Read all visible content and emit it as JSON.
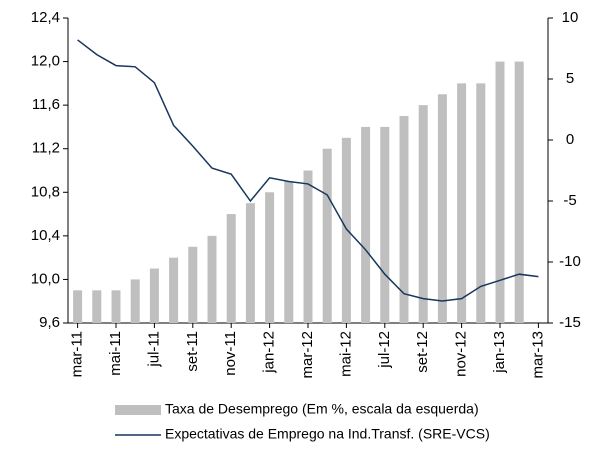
{
  "chart_data": {
    "type": "bar_line",
    "categories": [
      "mar-11",
      null,
      "mai-11",
      null,
      "jul-11",
      null,
      "set-11",
      null,
      "nov-11",
      null,
      "jan-12",
      null,
      "mar-12",
      null,
      "mai-12",
      null,
      "jul-12",
      null,
      "set-12",
      null,
      "nov-12",
      null,
      "jan-13",
      null,
      "mar-13"
    ],
    "series": [
      {
        "name": "Taxa de Desemprego (Em %, escala da esquerda)",
        "type": "bar",
        "color": "#bfbfbf",
        "axis": "y",
        "values": [
          9.9,
          9.9,
          9.9,
          10.0,
          10.1,
          10.2,
          10.3,
          10.4,
          10.6,
          10.7,
          10.8,
          10.9,
          11.0,
          11.2,
          11.3,
          11.4,
          11.4,
          11.5,
          11.6,
          11.7,
          11.8,
          11.8,
          12.0,
          12.0,
          null
        ]
      },
      {
        "name": "Expectativas de Emprego na Ind.Transf. (SRE-VCS)",
        "type": "line",
        "color": "#17375e",
        "axis": "y2",
        "values": [
          8.2,
          7.0,
          6.1,
          6.0,
          4.7,
          1.2,
          -0.5,
          -2.3,
          -2.8,
          -5.0,
          -3.1,
          -3.4,
          -3.6,
          -4.5,
          -7.3,
          -9.0,
          -11.0,
          -12.6,
          -13.0,
          -13.2,
          -13.0,
          -12.0,
          -11.5,
          -11.0,
          -11.2
        ]
      }
    ],
    "ylim": [
      9.6,
      12.4
    ],
    "yticks": [
      {
        "value": 9.6,
        "label": "9,6"
      },
      {
        "value": 10.0,
        "label": "10,0"
      },
      {
        "value": 10.4,
        "label": "10,4"
      },
      {
        "value": 10.8,
        "label": "10,8"
      },
      {
        "value": 11.2,
        "label": "11,2"
      },
      {
        "value": 11.6,
        "label": "11,6"
      },
      {
        "value": 12.0,
        "label": "12,0"
      },
      {
        "value": 12.4,
        "label": "12,4"
      }
    ],
    "y2lim": [
      -15,
      10
    ],
    "y2ticks": [
      -15,
      -10,
      -5,
      0,
      5,
      10
    ],
    "legend": "bottom"
  }
}
